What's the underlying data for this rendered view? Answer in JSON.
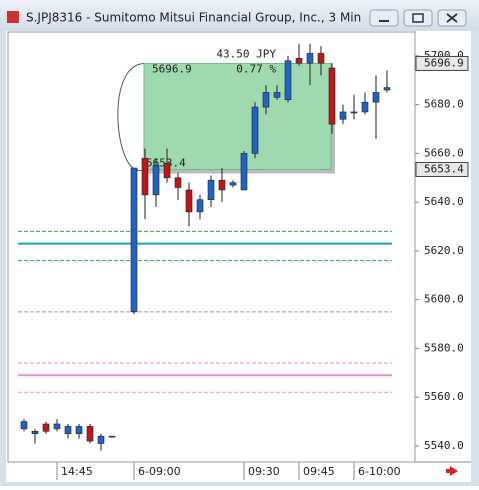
{
  "chart_data": {
    "type": "candlestick",
    "title": "S.JPJ8316 - Sumitomo Mitsui Financial Group, Inc., 3 Min",
    "categories": [
      null,
      null,
      null,
      "14:45",
      null,
      null,
      null,
      null,
      null,
      null,
      "6-09:00",
      null,
      null,
      null,
      null,
      null,
      null,
      null,
      null,
      null,
      "09:30",
      null,
      null,
      null,
      null,
      "09:45",
      null,
      null,
      null,
      null,
      "6-10:00",
      null,
      null,
      null
    ],
    "open": [
      5547,
      5545,
      5549,
      5547,
      5545,
      5545,
      5548,
      5541,
      5544,
      null,
      5595,
      5658,
      5643,
      5656,
      5650,
      5645,
      5636,
      5641,
      5649,
      5647,
      5645,
      5660,
      5679,
      5683,
      5682,
      5699,
      5697,
      5701,
      5695,
      5674,
      5677,
      5677,
      5681,
      5686
    ],
    "high": [
      5551,
      5547,
      5550,
      5551,
      5549,
      5549,
      5549,
      5545,
      5544,
      null,
      5654,
      5662,
      5658,
      5662,
      5652,
      5648,
      5643,
      5651,
      5654,
      5649,
      5661,
      5681,
      5688,
      5688,
      5700,
      5705,
      5705,
      5704,
      5697,
      5680,
      5684,
      5685,
      5692,
      5694
    ],
    "low": [
      5546,
      5541,
      5545,
      5546,
      5543,
      5543,
      5541,
      5538,
      5544,
      null,
      5594,
      5633,
      5638,
      5648,
      5641,
      5630,
      5633,
      5638,
      5640,
      5646,
      5645,
      5658,
      5676,
      5682,
      5681,
      5696,
      5688,
      5692,
      5668,
      5672,
      5674,
      5676,
      5666,
      5685
    ],
    "close": [
      5550,
      5546,
      5546,
      5549,
      5548,
      5548,
      5542,
      5544,
      5544,
      null,
      5654,
      5643,
      5655,
      5650,
      5646,
      5636,
      5641,
      5649,
      5645,
      5648,
      5660,
      5679,
      5685,
      5685,
      5698,
      5697,
      5701,
      5697,
      5672,
      5677,
      5677,
      5681,
      5685,
      5687
    ],
    "up_color": "#1f63c6",
    "down_color": "#c4141b",
    "ylim": [
      5533.4,
      5709.8
    ],
    "yticks": [
      {
        "value": 5540,
        "label": "5540.0"
      },
      {
        "value": 5560,
        "label": "5560.0"
      },
      {
        "value": 5580,
        "label": "5580.0"
      },
      {
        "value": 5600,
        "label": "5600.0"
      },
      {
        "value": 5620,
        "label": "5620.0"
      },
      {
        "value": 5640,
        "label": "5640.0"
      },
      {
        "value": 5660,
        "label": "5660.0"
      },
      {
        "value": 5680,
        "label": "5680.0"
      },
      {
        "value": 5700,
        "label": "5700.0"
      }
    ],
    "levels": [
      {
        "value": 5628,
        "color": "#2fa84a",
        "style": "dashed"
      },
      {
        "value": 5623,
        "color": "#1aa0c0",
        "style": "solid"
      },
      {
        "value": 5616,
        "color": "#2fa84a",
        "style": "dashed"
      },
      {
        "value": 5595,
        "color": "#9a9a9a",
        "style": "dashed"
      },
      {
        "value": 5574,
        "color": "#f08cc8",
        "style": "dashed"
      },
      {
        "value": 5569,
        "color": "#f08cc8",
        "style": "solid"
      },
      {
        "value": 5562,
        "color": "#f08cc8",
        "style": "dashed"
      }
    ],
    "measure": {
      "high": {
        "value": 5696.9,
        "label": "5696.9"
      },
      "low": {
        "value": 5653.4,
        "label": "5653.4"
      },
      "change": "43.50 JPY",
      "percent": "0.77 %"
    }
  }
}
